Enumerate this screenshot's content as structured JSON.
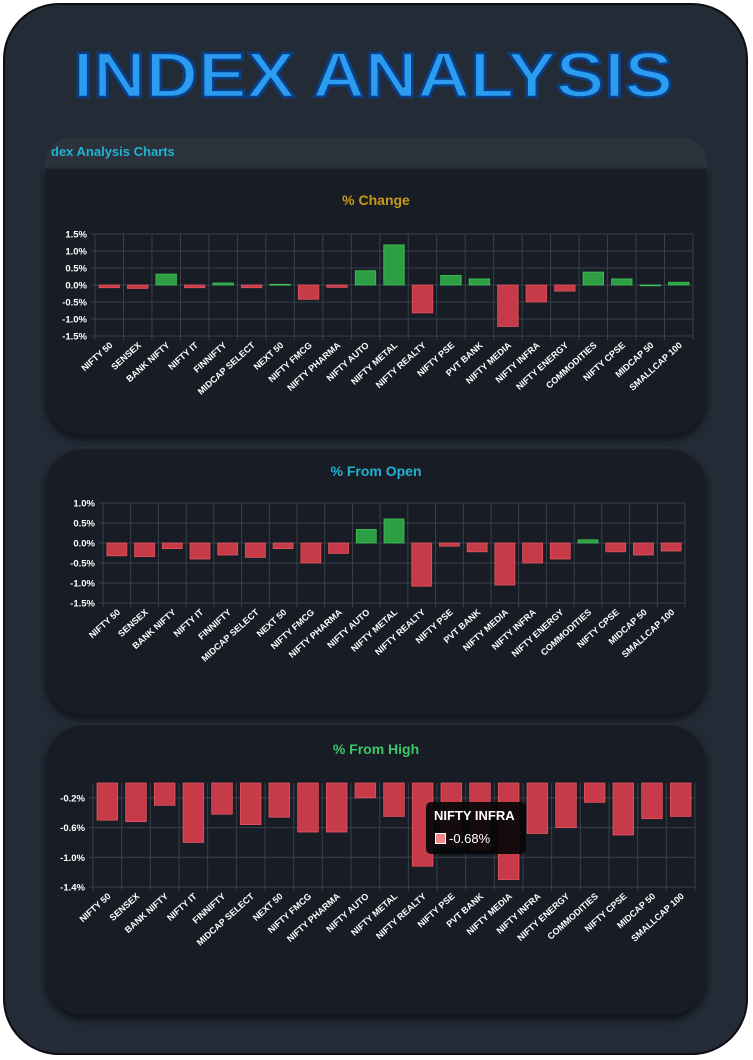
{
  "header": {
    "title": "INDEX ANALYSIS"
  },
  "section": {
    "label": "Index Analysis Charts",
    "visible_label": "dex Analysis Charts"
  },
  "colors": {
    "positive": "#2e9e42",
    "negative": "#c73b48",
    "title_blue": "#2b9cf0",
    "grid": "#3a414b",
    "tick": "#ffffff"
  },
  "chart_data": [
    {
      "type": "bar",
      "title": "% Change",
      "title_color": "#c89a1c",
      "categories": [
        "NIFTY 50",
        "SENSEX",
        "BANK NIFTY",
        "NIFTY IT",
        "FINNIFTY",
        "MIDCAP SELECT",
        "NEXT 50",
        "NIFTY FMCG",
        "NIFTY PHARMA",
        "NIFTY AUTO",
        "NIFTY METAL",
        "NIFTY REALTY",
        "NIFTY PSE",
        "PVT BANK",
        "NIFTY MEDIA",
        "NIFTY INFRA",
        "NIFTY ENERGY",
        "COMMODITIES",
        "NIFTY CPSE",
        "MIDCAP 50",
        "SMALLCAP 100"
      ],
      "values": [
        -0.08,
        -0.1,
        0.32,
        -0.08,
        0.06,
        -0.08,
        0.02,
        -0.42,
        -0.07,
        0.42,
        1.18,
        -0.82,
        0.28,
        0.18,
        -1.22,
        -0.5,
        -0.18,
        0.38,
        0.18,
        0.0,
        0.08
      ],
      "yticks": [
        1.5,
        1.0,
        0.5,
        0.0,
        -0.5,
        -1.0,
        -1.5
      ],
      "ytick_labels": [
        "1.5%",
        "1.0%",
        "0.5%",
        "0.0%",
        "-0.5%",
        "-1.0%",
        "-1.5%"
      ],
      "ylim": [
        -1.5,
        1.5
      ]
    },
    {
      "type": "bar",
      "title": "% From Open",
      "title_color": "#1fb3d4",
      "categories": [
        "NIFTY 50",
        "SENSEX",
        "BANK NIFTY",
        "NIFTY IT",
        "FINNIFTY",
        "MIDCAP SELECT",
        "NEXT 50",
        "NIFTY FMCG",
        "NIFTY PHARMA",
        "NIFTY AUTO",
        "NIFTY METAL",
        "NIFTY REALTY",
        "NIFTY PSE",
        "PVT BANK",
        "NIFTY MEDIA",
        "NIFTY INFRA",
        "NIFTY ENERGY",
        "COMMODITIES",
        "NIFTY CPSE",
        "MIDCAP 50",
        "SMALLCAP 100"
      ],
      "values": [
        -0.32,
        -0.34,
        -0.14,
        -0.4,
        -0.3,
        -0.36,
        -0.14,
        -0.5,
        -0.26,
        0.34,
        0.6,
        -1.08,
        -0.08,
        -0.22,
        -1.05,
        -0.5,
        -0.4,
        0.08,
        -0.22,
        -0.3,
        -0.2
      ],
      "yticks": [
        1.0,
        0.5,
        0.0,
        -0.5,
        -1.0,
        -1.5
      ],
      "ytick_labels": [
        "1.0%",
        "0.5%",
        "0.0%",
        "-0.5%",
        "-1.0%",
        "-1.5%"
      ],
      "ylim": [
        -1.5,
        1.0
      ]
    },
    {
      "type": "bar",
      "title": "% From High",
      "title_color": "#3cc76a",
      "categories": [
        "NIFTY 50",
        "SENSEX",
        "BANK NIFTY",
        "NIFTY IT",
        "FINNIFTY",
        "MIDCAP SELECT",
        "NEXT 50",
        "NIFTY FMCG",
        "NIFTY PHARMA",
        "NIFTY AUTO",
        "NIFTY METAL",
        "NIFTY REALTY",
        "NIFTY PSE",
        "PVT BANK",
        "NIFTY MEDIA",
        "NIFTY INFRA",
        "NIFTY ENERGY",
        "COMMODITIES",
        "NIFTY CPSE",
        "MIDCAP 50",
        "SMALLCAP 100"
      ],
      "values": [
        -0.5,
        -0.52,
        -0.3,
        -0.8,
        -0.42,
        -0.56,
        -0.46,
        -0.66,
        -0.66,
        -0.2,
        -0.45,
        -1.12,
        -0.85,
        -0.9,
        -1.3,
        -0.68,
        -0.6,
        -0.26,
        -0.7,
        -0.48,
        -0.45
      ],
      "yticks": [
        -0.2,
        -0.6,
        -1.0,
        -1.4
      ],
      "ytick_labels": [
        "-0.2%",
        "-0.6%",
        "-1.0%",
        "-1.4%"
      ],
      "ylim": [
        -1.4,
        0.0
      ]
    }
  ],
  "tooltip": {
    "title": "NIFTY INFRA",
    "value": "-0.68%"
  }
}
